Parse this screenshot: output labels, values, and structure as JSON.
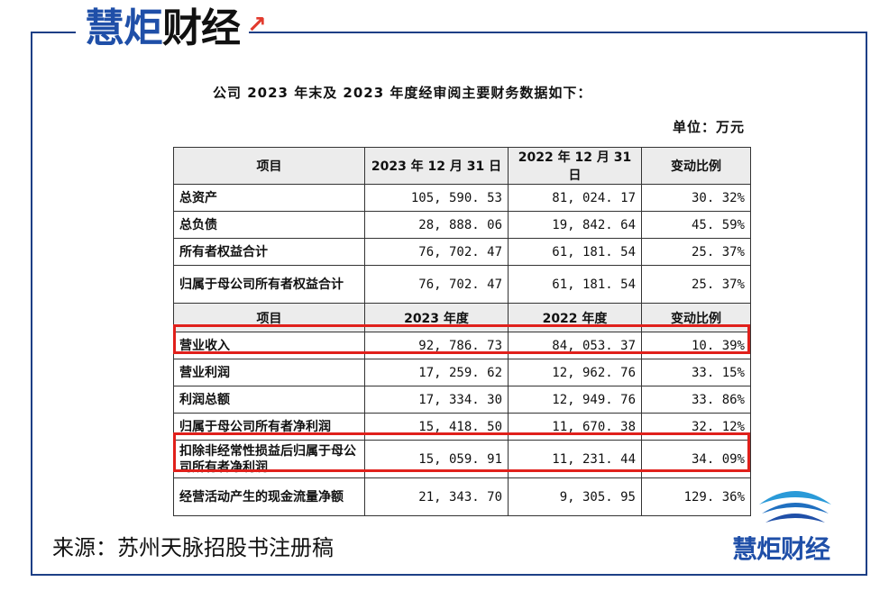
{
  "brand": {
    "part1": "慧炬",
    "part2": "财经"
  },
  "intro": "公司 2023 年末及 2023 年度经审阅主要财务数据如下：",
  "unit": "单位：万元",
  "table": {
    "header1": [
      "项目",
      "2023 年 12 月 31 日",
      "2022 年 12 月 31 日",
      "变动比例"
    ],
    "rows1": [
      [
        "总资产",
        "105, 590. 53",
        "81, 024. 17",
        "30. 32%"
      ],
      [
        "总负债",
        "28, 888. 06",
        "19, 842. 64",
        "45. 59%"
      ],
      [
        "所有者权益合计",
        "76, 702. 47",
        "61, 181. 54",
        "25. 37%"
      ],
      [
        "归属于母公司所有者权益合计",
        "76, 702. 47",
        "61, 181. 54",
        "25. 37%"
      ]
    ],
    "header2": [
      "项目",
      "2023 年度",
      "2022 年度",
      "变动比例"
    ],
    "rows2": [
      [
        "营业收入",
        "92, 786. 73",
        "84, 053. 37",
        "10. 39%"
      ],
      [
        "营业利润",
        "17, 259. 62",
        "12, 962. 76",
        "33. 15%"
      ],
      [
        "利润总额",
        "17, 334. 30",
        "12, 949. 76",
        "33. 86%"
      ],
      [
        "归属于母公司所有者净利润",
        "15, 418. 50",
        "11, 670. 38",
        "32. 12%"
      ],
      [
        "扣除非经常性损益后归属于母公司所有者净利润",
        "15, 059. 91",
        "11, 231. 44",
        "34. 09%"
      ],
      [
        "经营活动产生的现金流量净额",
        "21, 343. 70",
        "9, 305. 95",
        "129. 36%"
      ]
    ]
  },
  "source": "来源：苏州天脉招股书注册稿",
  "colors": {
    "brand_blue": "#1f4fa8",
    "highlight_red": "#e0201b",
    "frame": "#1d3f86"
  }
}
